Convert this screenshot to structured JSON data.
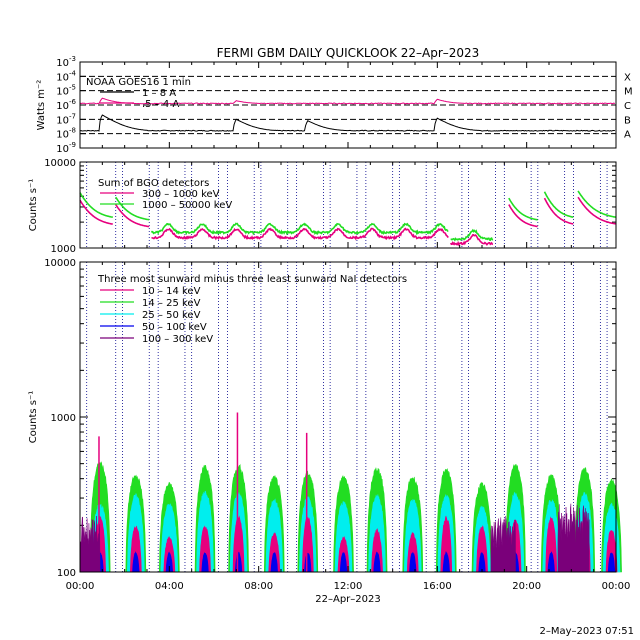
{
  "title": "FERMI GBM DAILY QUICKLOOK  22–Apr–2023",
  "footer": "2–May–2023 07:51",
  "colors": {
    "black": "#000000",
    "magenta": "#e6007e",
    "green": "#22dd22",
    "cyan": "#00eeee",
    "blue": "#0000ee",
    "purple": "#7a007a",
    "dotted": "#00008b"
  },
  "chart_data": [
    {
      "type": "line",
      "panel": "goes",
      "ylabel": "Watts m⁻²",
      "ytick_exponents": [
        "-3",
        "-4",
        "-5",
        "-6",
        "-7",
        "-8",
        "-9"
      ],
      "yscale": "log",
      "ylim": [
        1e-09,
        0.001
      ],
      "flare_classes": [
        "X",
        "M",
        "C",
        "B",
        "A"
      ],
      "legend_title": "NOAA GOES16 1 min",
      "series": [
        {
          "name": "1 – 8 A",
          "color": "#000000",
          "baseline": 1.5e-08,
          "peaks": [
            [
              1.0,
              2e-07
            ],
            [
              7.0,
              1e-07
            ],
            [
              10.2,
              8e-08
            ],
            [
              16.0,
              1.2e-07
            ]
          ]
        },
        {
          "name": ".5 – 4 A",
          "color": "#e6007e",
          "baseline": 1.2e-06,
          "peaks": [
            [
              1.0,
              3e-06
            ],
            [
              7.0,
              2e-06
            ],
            [
              16.0,
              2.5e-06
            ]
          ]
        }
      ]
    },
    {
      "type": "line",
      "panel": "bgo",
      "ylabel": "Counts s⁻¹",
      "yscale": "log",
      "ylim": [
        1000,
        10000
      ],
      "ytick_labels": [
        "10000",
        "1000"
      ],
      "legend_title": "Sum of BGO detectors",
      "series": [
        {
          "name": "300 – 1000 keV",
          "color": "#e6007e"
        },
        {
          "name": "1000 – 50000 keV",
          "color": "#22dd22"
        }
      ],
      "segments": [
        {
          "start": 0.0,
          "end": 1.5,
          "peak_magenta": 3600,
          "peak_green": 4400,
          "end_magenta": 1800
        },
        {
          "start": 1.6,
          "end": 3.1,
          "peak_magenta": 3200,
          "peak_green": 3900,
          "end_magenta": 1700
        },
        {
          "start": 3.2,
          "end": 16.5,
          "level_magenta": 1350,
          "level_green": 1550
        },
        {
          "start": 16.6,
          "end": 18.5,
          "level_magenta": 1150,
          "level_green": 1300
        },
        {
          "start": 19.2,
          "end": 20.5,
          "peak_magenta": 3200,
          "peak_green": 3800,
          "end_magenta": 1700
        },
        {
          "start": 20.8,
          "end": 22.1,
          "peak_magenta": 3800,
          "peak_green": 4500,
          "end_magenta": 1800
        },
        {
          "start": 22.3,
          "end": 24.0,
          "peak_magenta": 3900,
          "peak_green": 4600,
          "end_magenta": 1800
        }
      ]
    },
    {
      "type": "area",
      "panel": "nai",
      "ylabel": "Counts s⁻¹",
      "yscale": "log",
      "ylim": [
        100,
        10000
      ],
      "ytick_labels": [
        "10000",
        "1000",
        "100"
      ],
      "legend_title": "Three most sunward minus three least sunward NaI detectors",
      "series": [
        {
          "name": "10 – 14 keV",
          "color": "#e6007e"
        },
        {
          "name": "14 – 25 keV",
          "color": "#22dd22"
        },
        {
          "name": "25 – 50 keV",
          "color": "#00eeee"
        },
        {
          "name": "50 – 100 keV",
          "color": "#0000ee"
        },
        {
          "name": "100 – 300 keV",
          "color": "#7a007a"
        }
      ],
      "orbit_peaks": [
        {
          "t": 0.9,
          "green": 520,
          "cyan": 280,
          "magenta": 750
        },
        {
          "t": 2.5,
          "green": 430,
          "cyan": 320,
          "magenta": 200
        },
        {
          "t": 4.0,
          "green": 380,
          "cyan": 280,
          "magenta": 170
        },
        {
          "t": 5.6,
          "green": 490,
          "cyan": 340,
          "magenta": 200
        },
        {
          "t": 7.1,
          "green": 500,
          "cyan": 330,
          "magenta": 1070
        },
        {
          "t": 8.7,
          "green": 420,
          "cyan": 300,
          "magenta": 180
        },
        {
          "t": 10.2,
          "green": 450,
          "cyan": 310,
          "magenta": 790
        },
        {
          "t": 11.8,
          "green": 420,
          "cyan": 290,
          "magenta": 170
        },
        {
          "t": 13.3,
          "green": 480,
          "cyan": 320,
          "magenta": 190
        },
        {
          "t": 14.9,
          "green": 420,
          "cyan": 300,
          "magenta": 180
        },
        {
          "t": 16.4,
          "green": 470,
          "cyan": 320,
          "magenta": 260
        },
        {
          "t": 18.0,
          "green": 380,
          "cyan": 270,
          "magenta": 200
        },
        {
          "t": 19.5,
          "green": 500,
          "cyan": 330,
          "magenta": 220
        },
        {
          "t": 21.1,
          "green": 430,
          "cyan": 300,
          "magenta": 290
        },
        {
          "t": 22.6,
          "green": 480,
          "cyan": 330,
          "magenta": 290
        },
        {
          "t": 23.8,
          "green": 400,
          "cyan": 280,
          "magenta": 190
        }
      ],
      "purple_bursts": [
        {
          "start": 0.0,
          "end": 0.9,
          "level": 230
        },
        {
          "start": 18.4,
          "end": 19.5,
          "level": 230
        },
        {
          "start": 21.4,
          "end": 22.8,
          "level": 280
        }
      ]
    }
  ],
  "x_axis": {
    "label": "22–Apr–2023",
    "range_hours": [
      0,
      24
    ],
    "tick_labels": [
      "00:00",
      "04:00",
      "08:00",
      "12:00",
      "16:00",
      "20:00",
      "00:00"
    ],
    "saa_lines_hours": [
      0.3,
      1.6,
      1.9,
      3.1,
      3.5,
      4.7,
      5.0,
      6.2,
      6.6,
      7.8,
      8.1,
      9.3,
      9.7,
      10.9,
      11.2,
      12.4,
      12.8,
      14.0,
      14.3,
      15.5,
      15.9,
      17.1,
      17.4,
      18.6,
      19.0,
      20.2,
      20.5,
      21.7,
      22.1,
      23.3,
      23.6
    ]
  }
}
